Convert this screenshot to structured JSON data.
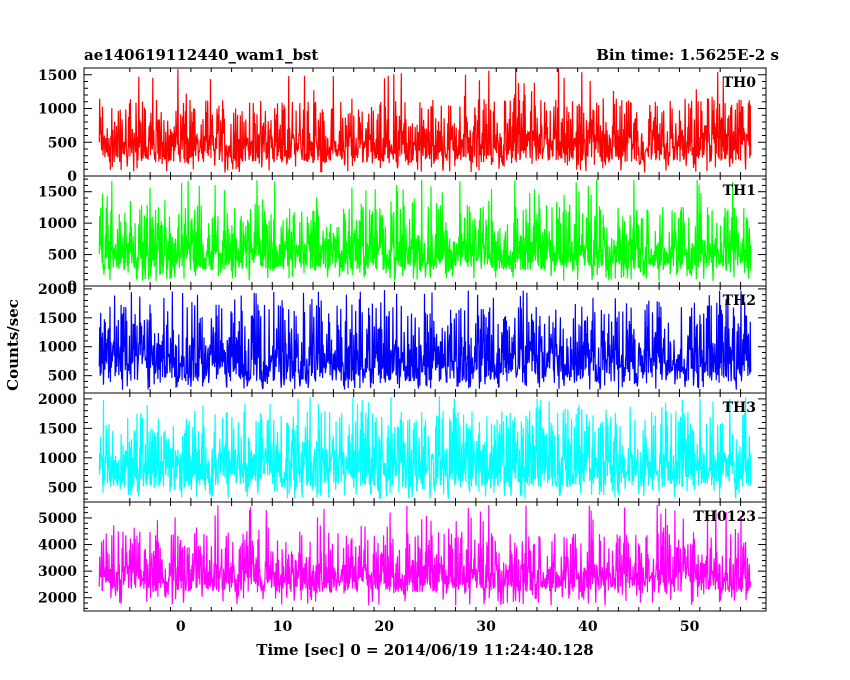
{
  "chart_data": {
    "type": "line",
    "title": "ae140619112440_wam1_bst",
    "subtitle": "Bin time: 1.5625E-2 s",
    "xlabel": "Time [sec] 0 = 2014/06/19 11:24:40.128",
    "ylabel": "Counts/sec",
    "xlim": [
      -9.5,
      57.5
    ],
    "x_ticks": [
      0,
      10,
      20,
      30,
      40,
      50
    ],
    "data_x_range": [
      -8,
      56
    ],
    "grid": false,
    "panels": [
      {
        "name": "TH0",
        "color": "#ff0000",
        "ylim": [
          0,
          1600
        ],
        "y_ticks": [
          0,
          500,
          1000,
          1500
        ],
        "baseline": 50,
        "typical_low": 200,
        "typical_high": 1150,
        "peak": 1600
      },
      {
        "name": "TH1",
        "color": "#00ff00",
        "ylim": [
          0,
          1750
        ],
        "y_ticks": [
          0,
          500,
          1000,
          1500
        ],
        "baseline": 80,
        "typical_low": 250,
        "typical_high": 1300,
        "peak": 1700
      },
      {
        "name": "TH2",
        "color": "#0000ff",
        "ylim": [
          200,
          2050
        ],
        "y_ticks": [
          500,
          1000,
          1500,
          2000
        ],
        "baseline": 250,
        "typical_low": 400,
        "typical_high": 1750,
        "peak": 2000
      },
      {
        "name": "TH3",
        "color": "#00ffff",
        "ylim": [
          250,
          2100
        ],
        "y_ticks": [
          500,
          1000,
          1500,
          2000
        ],
        "baseline": 300,
        "typical_low": 500,
        "typical_high": 1800,
        "peak": 2050
      },
      {
        "name": "TH0123",
        "color": "#ff00ff",
        "ylim": [
          1500,
          5600
        ],
        "y_ticks": [
          2000,
          3000,
          4000,
          5000
        ],
        "baseline": 1700,
        "typical_low": 2200,
        "typical_high": 4500,
        "peak": 5500
      }
    ]
  }
}
